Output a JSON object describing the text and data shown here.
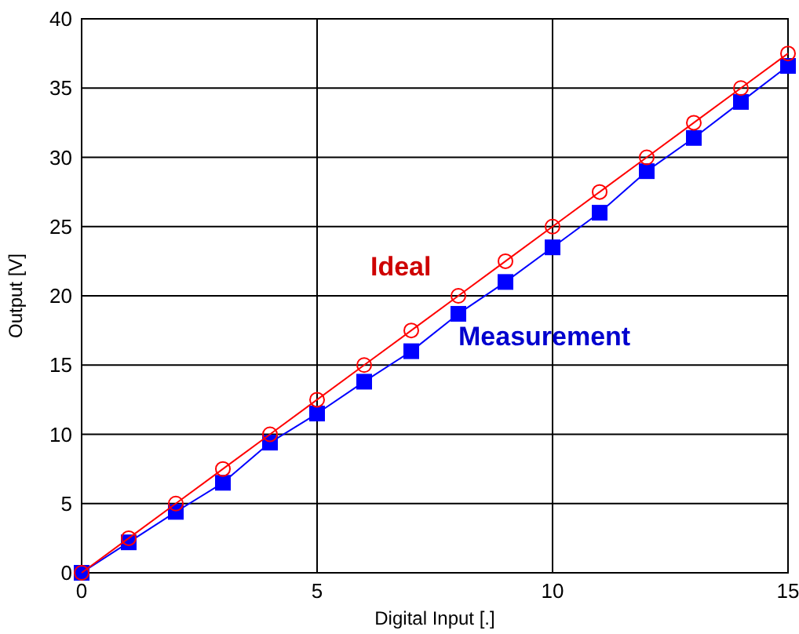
{
  "chart_data": {
    "type": "line",
    "xlabel": "Digital Input [.]",
    "ylabel": "Output [V]",
    "x": [
      0,
      1,
      2,
      3,
      4,
      5,
      6,
      7,
      8,
      9,
      10,
      11,
      12,
      13,
      14,
      15
    ],
    "series": [
      {
        "name": "Ideal",
        "color": "#ff0000",
        "marker": "circle",
        "values": [
          0,
          2.5,
          5,
          7.5,
          10,
          12.5,
          15,
          17.5,
          20,
          22.5,
          25,
          27.5,
          30,
          32.5,
          35,
          37.5
        ]
      },
      {
        "name": "Measurement",
        "color": "#0000ff",
        "marker": "square",
        "values": [
          0,
          2.2,
          4.4,
          6.5,
          9.4,
          11.5,
          13.8,
          16,
          18.7,
          21,
          23.5,
          26,
          29,
          31.4,
          34,
          36.6
        ]
      }
    ],
    "xlim": [
      0,
      15
    ],
    "xticks": [
      0,
      5,
      10,
      15
    ],
    "ylim": [
      0,
      40
    ],
    "yticks": [
      0,
      5,
      10,
      15,
      20,
      25,
      30,
      35,
      40
    ],
    "grid": true
  }
}
